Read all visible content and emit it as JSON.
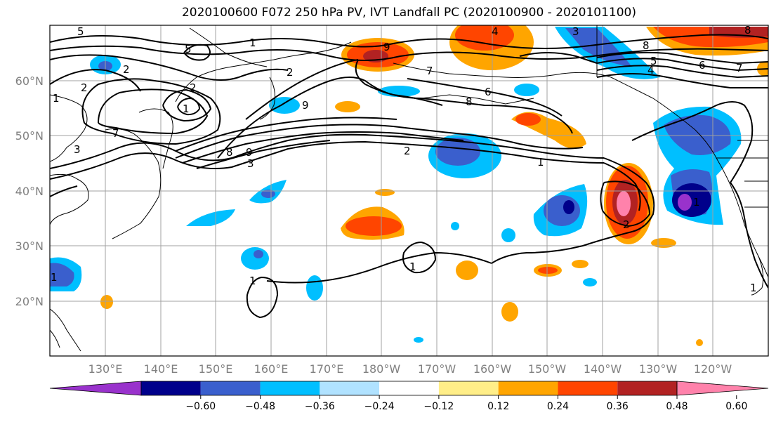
{
  "title": "2020100600 F072 250 hPa PV, IVT Landfall PC (2020100900 - 2020101100)",
  "lat_labels": [
    "60°N",
    "50°N",
    "40°N",
    "30°N",
    "20°N"
  ],
  "lon_labels": [
    "130°E",
    "140°E",
    "150°E",
    "160°E",
    "170°E",
    "180°W",
    "170°W",
    "160°W",
    "150°W",
    "140°W",
    "130°W",
    "120°W"
  ],
  "colorbar": {
    "tick_labels": [
      "−0.60",
      "−0.48",
      "−0.36",
      "−0.24",
      "−0.12",
      "0.12",
      "0.24",
      "0.36",
      "0.48",
      "0.60"
    ],
    "colors": [
      "#9932cc",
      "#00008b",
      "#3a5fcd",
      "#00bfff",
      "#b0e2ff",
      "#ffffff",
      "#ffee88",
      "#ffa500",
      "#ff4500",
      "#b22222",
      "#ff82ab"
    ]
  },
  "contour_labels": [
    "5",
    "2",
    "2",
    "1",
    "2",
    "1",
    "5",
    "1",
    "2",
    "7",
    "9",
    "8",
    "3",
    "9",
    "2",
    "1",
    "3",
    "8",
    "9",
    "8",
    "6",
    "4",
    "7",
    "8",
    "5",
    "4",
    "3",
    "7",
    "6",
    "1",
    "1",
    "2",
    "1",
    "1",
    "1"
  ],
  "colors": {
    "contour": "#000000",
    "grid": "#a0a0a0",
    "coast": "#000000"
  }
}
